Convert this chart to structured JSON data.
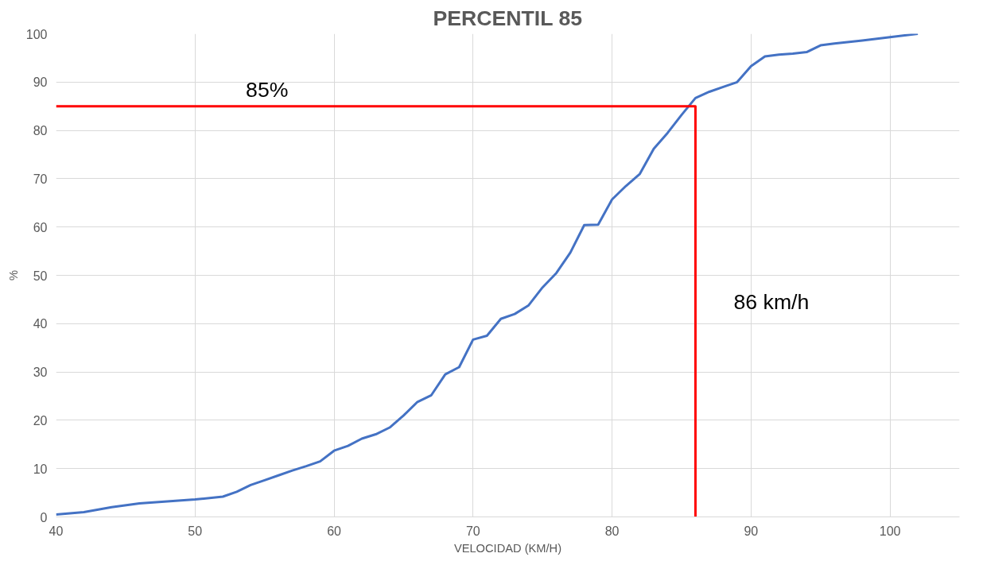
{
  "chart_data": {
    "type": "line",
    "title": "PERCENTIL 85",
    "xlabel": "VELOCIDAD (KM/H)",
    "ylabel": "%",
    "xlim": [
      40,
      105
    ],
    "xticks": [
      40,
      50,
      60,
      70,
      80,
      90,
      100
    ],
    "ylim": [
      0,
      100
    ],
    "yticks": [
      0,
      10,
      20,
      30,
      40,
      50,
      60,
      70,
      80,
      90,
      100
    ],
    "grid": true,
    "marker": "none",
    "line_style": "solid",
    "series": [
      {
        "color": "#4472c4",
        "x": [
          40,
          42,
          44,
          46,
          48,
          50,
          52,
          53,
          54,
          55,
          56,
          57,
          58,
          59,
          60,
          61,
          62,
          63,
          64,
          65,
          66,
          67,
          68,
          69,
          70,
          71,
          72,
          73,
          74,
          75,
          76,
          77,
          78,
          79,
          80,
          81,
          82,
          83,
          84,
          85,
          86,
          87,
          88,
          89,
          90,
          91,
          92,
          93,
          94,
          95,
          96,
          98,
          100,
          102
        ],
        "values": [
          0.5,
          1,
          2,
          2.8,
          3.2,
          3.6,
          4.2,
          5.2,
          6.6,
          7.6,
          8.6,
          9.6,
          10.5,
          11.5,
          13.7,
          14.7,
          16.2,
          17.1,
          18.5,
          21,
          23.8,
          25.2,
          29.5,
          31,
          36.7,
          37.5,
          41,
          42,
          43.8,
          47.5,
          50.5,
          54.7,
          60.4,
          60.5,
          65.7,
          68.5,
          71,
          76.2,
          79.5,
          83.2,
          86.7,
          88,
          89,
          90,
          93.3,
          95.3,
          95.7,
          95.9,
          96.2,
          97.6,
          98,
          98.6,
          99.3,
          100
        ]
      },
      {
        "color": "#ff0000",
        "x": [
          40,
          86,
          86
        ],
        "values": [
          85,
          85,
          0
        ]
      }
    ],
    "annotations": [
      "85%",
      "86 km/h"
    ]
  }
}
